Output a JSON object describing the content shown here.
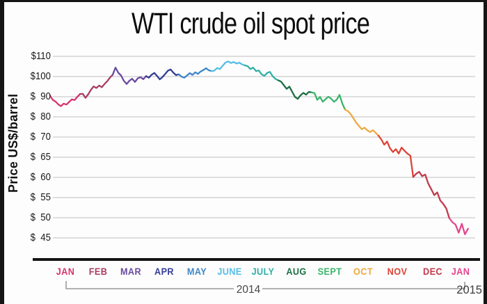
{
  "title": "WTI crude oil spot price",
  "chart_data": {
    "type": "line",
    "title": "WTI crude oil spot price",
    "ylabel": "Price US$/barrel",
    "xlabel": "",
    "grid": "horizontal gridlines on",
    "legend": "none (months color-coded on x axis)",
    "y_scale": "non-linear: equal spacing per tick, $10 steps from $110 to $70, $5 steps from $70 to $45",
    "y_ticks": [
      "$110",
      "$100",
      "$  90",
      "$  80",
      "$  70",
      "$  65",
      "$  60",
      "$  55",
      "$  50",
      "$  45"
    ],
    "y_tick_values": [
      110,
      100,
      90,
      80,
      70,
      65,
      60,
      55,
      50,
      45
    ],
    "ylim": [
      44,
      111
    ],
    "x_years": {
      "y2014": "2014",
      "y2015": "2015"
    },
    "months": [
      {
        "label": "JAN",
        "year": 2014,
        "color": "#d8336f",
        "values": [
          90.6,
          88.4,
          87.6,
          86.2,
          85.3,
          86.6,
          86.1,
          87.4,
          88.7,
          88.3,
          89.9,
          91.3
        ]
      },
      {
        "label": "FEB",
        "year": 2014,
        "color": "#a93c63",
        "values": [
          91.4,
          89.4,
          91.2,
          93.4,
          95.1,
          94.3,
          95.5,
          94.7,
          96.3,
          97.7,
          99.5,
          100.9
        ]
      },
      {
        "label": "MAR",
        "year": 2014,
        "color": "#6a4aa1",
        "values": [
          104.4,
          101.9,
          100.5,
          97.9,
          96.3,
          97.9,
          98.9,
          97.3,
          99.1,
          99.7,
          98.7,
          100.2
        ]
      },
      {
        "label": "APR",
        "year": 2014,
        "color": "#333d93",
        "values": [
          99.4,
          100.9,
          101.8,
          100.3,
          98.6,
          99.7,
          101.3,
          102.9,
          103.5,
          101.9,
          100.7,
          101.1
        ]
      },
      {
        "label": "MAY",
        "year": 2014,
        "color": "#3e86c8",
        "values": [
          99.9,
          99.4,
          100.5,
          101.7,
          100.8,
          102.1,
          101.3,
          102.5,
          103.2,
          104.1,
          103.1,
          102.7
        ]
      },
      {
        "label": "JUNE",
        "year": 2014,
        "color": "#55bde6",
        "values": [
          102.9,
          104.2,
          103.7,
          105.3,
          106.9,
          107.5,
          106.7,
          107.2,
          106.4,
          106.9,
          106.0,
          105.5
        ]
      },
      {
        "label": "JULY",
        "year": 2014,
        "color": "#2fb0a6",
        "values": [
          105.1,
          103.7,
          104.4,
          102.7,
          103.0,
          101.1,
          100.3,
          101.8,
          102.3,
          100.1,
          98.8,
          98.1
        ]
      },
      {
        "label": "AUG",
        "year": 2014,
        "color": "#1d6f45",
        "values": [
          97.5,
          95.7,
          93.9,
          95.0,
          92.4,
          89.9,
          88.9,
          90.7,
          91.9,
          91.0,
          92.4,
          92.1
        ]
      },
      {
        "label": "SEPT",
        "year": 2014,
        "color": "#3ab56b",
        "values": [
          91.8,
          88.4,
          89.9,
          87.5,
          88.8,
          90.0,
          89.0,
          87.5,
          88.5,
          90.9,
          86.7,
          83.6
        ]
      },
      {
        "label": "OCT",
        "year": 2014,
        "color": "#f0a840",
        "values": [
          82.9,
          81.4,
          79.3,
          77.1,
          75.5,
          73.9,
          74.7,
          73.3,
          72.5,
          73.4,
          72.1,
          70.7
        ]
      },
      {
        "label": "NOV",
        "year": 2014,
        "color": "#de4237",
        "values": [
          69.4,
          68.1,
          68.9,
          67.2,
          66.3,
          67.0,
          65.9,
          67.4,
          66.6,
          65.9,
          65.4,
          60.1
        ]
      },
      {
        "label": "DEC",
        "year": 2014,
        "color": "#c03a4b",
        "values": [
          60.9,
          61.4,
          60.3,
          60.7,
          58.5,
          57.1,
          55.6,
          56.3,
          54.3,
          53.4,
          52.3,
          49.9
        ]
      },
      {
        "label": "JAN",
        "year": 2015,
        "color": "#e2468e",
        "values": [
          48.9,
          48.3,
          46.3,
          48.5,
          45.9,
          47.3
        ]
      }
    ]
  }
}
